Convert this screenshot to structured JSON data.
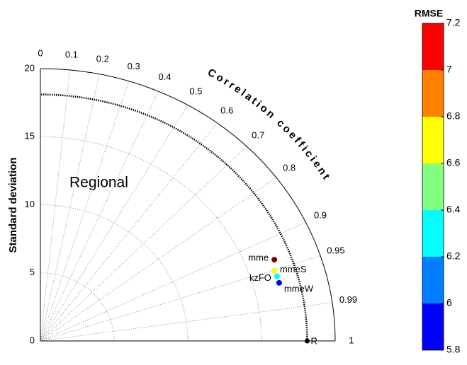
{
  "chart_data": {
    "type": "taylor",
    "annotation": "Regional",
    "ylabel": "Standard deviation",
    "corr_label": "Correlation coefficient",
    "ylim": [
      0,
      20
    ],
    "yticks": [
      0,
      5,
      10,
      15,
      20
    ],
    "corr_ticks": [
      0,
      0.1,
      0.2,
      0.3,
      0.4,
      0.5,
      0.6,
      0.7,
      0.8,
      0.9,
      0.95,
      0.99,
      1
    ],
    "reference": {
      "label": "R",
      "std": 18.1
    },
    "points": [
      {
        "name": "mme",
        "color": "#7f0000",
        "std": 16.96,
        "corr": 0.936
      },
      {
        "name": "mmeS",
        "color": "#ffff00",
        "std": 16.68,
        "corr": 0.951
      },
      {
        "name": "kzFO",
        "color": "#00ffff",
        "std": 16.74,
        "corr": 0.959
      },
      {
        "name": "mmeW",
        "color": "#0000ff",
        "std": 16.75,
        "corr": 0.967
      }
    ],
    "colorbar": {
      "title": "RMSE",
      "lim": [
        5.8,
        7.2
      ],
      "ticks": [
        5.8,
        6,
        6.2,
        6.4,
        6.6,
        6.8,
        7,
        7.2
      ],
      "colors": [
        "#0000ff",
        "#0080ff",
        "#00ffff",
        "#80ff80",
        "#ffff00",
        "#ff8000",
        "#ff0000"
      ]
    }
  }
}
